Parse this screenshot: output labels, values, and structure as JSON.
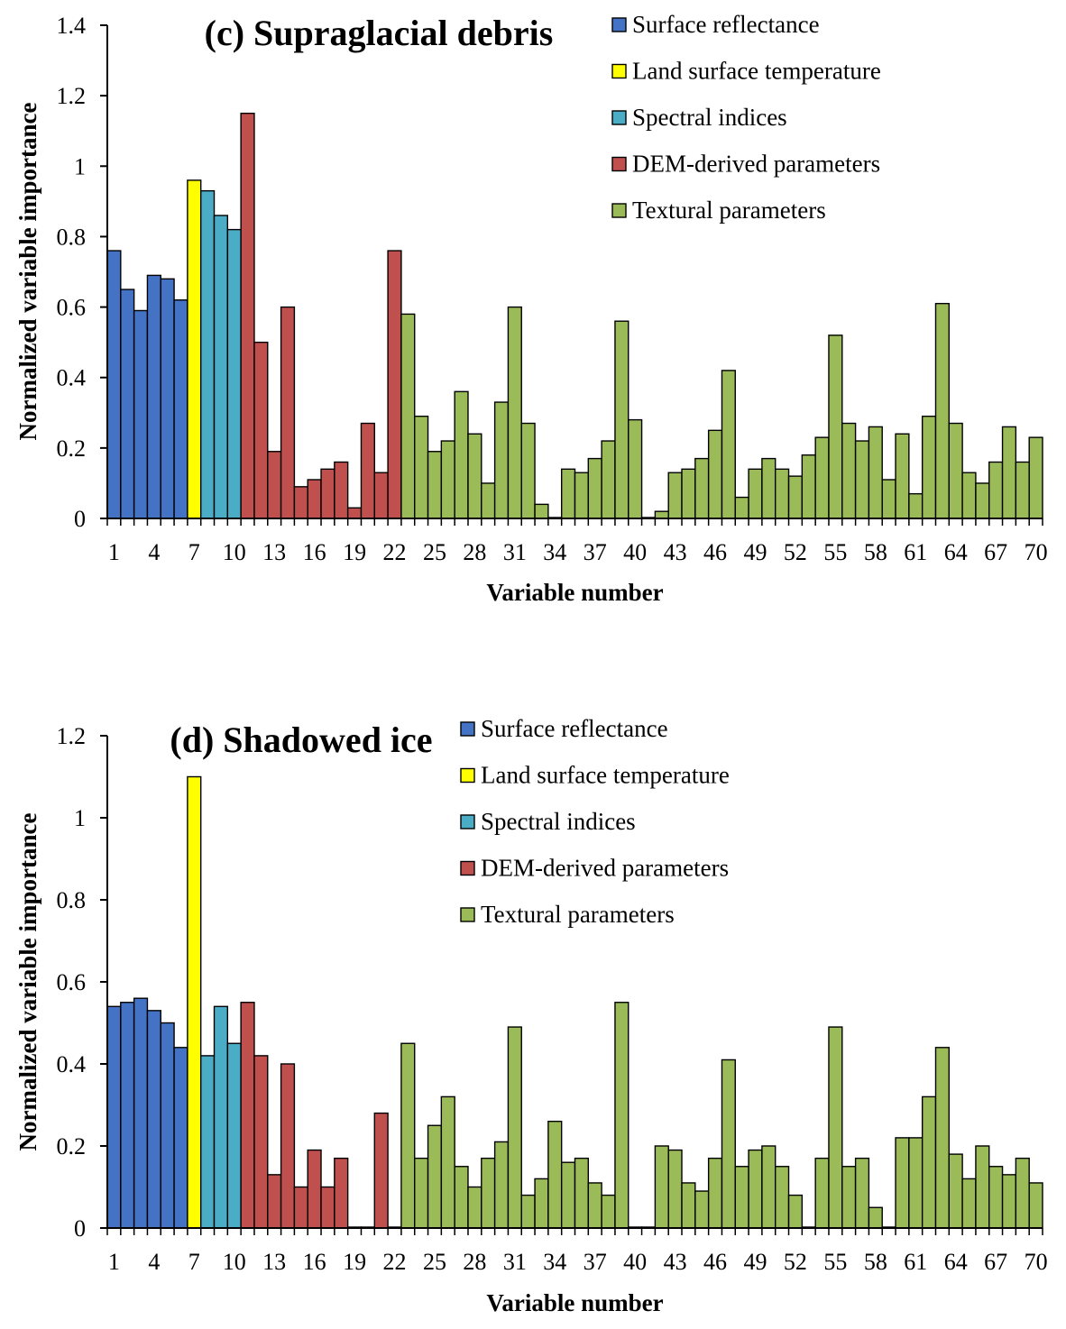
{
  "colors": {
    "surface_reflectance": "#4472C4",
    "land_surface_temperature": "#FFFF00",
    "spectral_indices": "#4BACC6",
    "dem_derived": "#C0504D",
    "textural": "#9BBB59"
  },
  "chart_data": [
    {
      "type": "bar",
      "title": "(c) Supraglacial debris",
      "xlabel": "Variable number",
      "ylabel": "Normalized variable importance",
      "ylim": [
        0,
        1.4
      ],
      "yticks": [
        "0",
        "0.2",
        "0.4",
        "0.6",
        "0.8",
        "1",
        "1.2",
        "1.4"
      ],
      "xticks": [
        "1",
        "4",
        "7",
        "10",
        "13",
        "16",
        "19",
        "22",
        "25",
        "28",
        "31",
        "34",
        "37",
        "40",
        "43",
        "46",
        "49",
        "52",
        "55",
        "58",
        "61",
        "64",
        "67",
        "70"
      ],
      "legend_position": "top-right",
      "legend": [
        {
          "label": "Surface reflectance",
          "group": "surface_reflectance"
        },
        {
          "label": "Land surface temperature",
          "group": "land_surface_temperature"
        },
        {
          "label": "Spectral indices",
          "group": "spectral_indices"
        },
        {
          "label": "DEM-derived parameters",
          "group": "dem_derived"
        },
        {
          "label": "Textural parameters",
          "group": "textural"
        }
      ],
      "groups": [
        {
          "group": "surface_reflectance",
          "from": 1,
          "to": 6
        },
        {
          "group": "land_surface_temperature",
          "from": 7,
          "to": 7
        },
        {
          "group": "spectral_indices",
          "from": 8,
          "to": 10
        },
        {
          "group": "dem_derived",
          "from": 11,
          "to": 22
        },
        {
          "group": "textural",
          "from": 23,
          "to": 70
        }
      ],
      "values": [
        0.76,
        0.65,
        0.59,
        0.69,
        0.68,
        0.62,
        0.96,
        0.93,
        0.86,
        0.82,
        1.15,
        0.5,
        0.19,
        0.6,
        0.09,
        0.11,
        0.14,
        0.16,
        0.03,
        0.27,
        0.13,
        0.76,
        0.58,
        0.29,
        0.19,
        0.22,
        0.36,
        0.24,
        0.1,
        0.33,
        0.6,
        0.27,
        0.04,
        0.0,
        0.14,
        0.13,
        0.17,
        0.22,
        0.56,
        0.28,
        0.0,
        0.02,
        0.13,
        0.14,
        0.17,
        0.25,
        0.42,
        0.06,
        0.14,
        0.17,
        0.14,
        0.12,
        0.18,
        0.23,
        0.52,
        0.27,
        0.22,
        0.26,
        0.11,
        0.24,
        0.07,
        0.29,
        0.61,
        0.27,
        0.13,
        0.1,
        0.16,
        0.26,
        0.16,
        0.23
      ]
    },
    {
      "type": "bar",
      "title": "(d) Shadowed ice",
      "xlabel": "Variable number",
      "ylabel": "Normalized variable importance",
      "ylim": [
        0,
        1.2
      ],
      "yticks": [
        "0",
        "0.2",
        "0.4",
        "0.6",
        "0.8",
        "1",
        "1.2"
      ],
      "xticks": [
        "1",
        "4",
        "7",
        "10",
        "13",
        "16",
        "19",
        "22",
        "25",
        "28",
        "31",
        "34",
        "37",
        "40",
        "43",
        "46",
        "49",
        "52",
        "55",
        "58",
        "61",
        "64",
        "67",
        "70"
      ],
      "legend_position": "top-right",
      "legend": [
        {
          "label": "Surface reflectance",
          "group": "surface_reflectance"
        },
        {
          "label": "Land surface temperature",
          "group": "land_surface_temperature"
        },
        {
          "label": "Spectral indices",
          "group": "spectral_indices"
        },
        {
          "label": "DEM-derived parameters",
          "group": "dem_derived"
        },
        {
          "label": "Textural parameters",
          "group": "textural"
        }
      ],
      "groups": [
        {
          "group": "surface_reflectance",
          "from": 1,
          "to": 6
        },
        {
          "group": "land_surface_temperature",
          "from": 7,
          "to": 7
        },
        {
          "group": "spectral_indices",
          "from": 8,
          "to": 10
        },
        {
          "group": "dem_derived",
          "from": 11,
          "to": 22
        },
        {
          "group": "textural",
          "from": 23,
          "to": 70
        }
      ],
      "values": [
        0.54,
        0.55,
        0.56,
        0.53,
        0.5,
        0.44,
        1.1,
        0.42,
        0.54,
        0.45,
        0.55,
        0.42,
        0.13,
        0.4,
        0.1,
        0.19,
        0.1,
        0.17,
        0.0,
        0.0,
        0.28,
        0.0,
        0.45,
        0.17,
        0.25,
        0.32,
        0.15,
        0.1,
        0.17,
        0.21,
        0.49,
        0.08,
        0.12,
        0.26,
        0.16,
        0.17,
        0.11,
        0.08,
        0.55,
        0.0,
        0.0,
        0.2,
        0.19,
        0.11,
        0.09,
        0.17,
        0.41,
        0.15,
        0.19,
        0.2,
        0.15,
        0.08,
        0.0,
        0.17,
        0.49,
        0.15,
        0.17,
        0.05,
        0.0,
        0.22,
        0.22,
        0.32,
        0.44,
        0.18,
        0.12,
        0.2,
        0.15,
        0.13,
        0.17,
        0.11
      ]
    }
  ]
}
